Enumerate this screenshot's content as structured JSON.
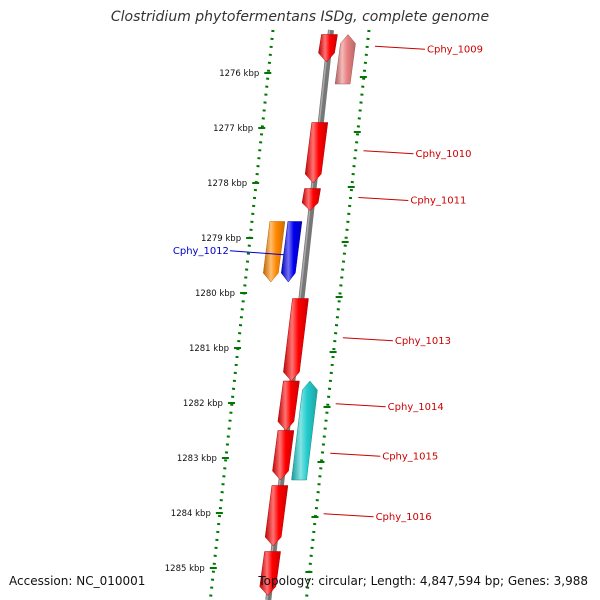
{
  "title": "Clostridium phytofermentans ISDg, complete genome",
  "footer": {
    "accession": "Accession: NC_010001",
    "topology": "Topology: circular; Length: 4,847,594 bp; Genes: 3,988"
  },
  "chart_data": {
    "type": "genome-map",
    "axis_unit": "kbp",
    "ticks": [
      "1276 kbp",
      "1277 kbp",
      "1278 kbp",
      "1279 kbp",
      "1280 kbp",
      "1281 kbp",
      "1282 kbp",
      "1283 kbp",
      "1284 kbp",
      "1285 kbp"
    ],
    "genes": [
      {
        "label": "Cphy_1009",
        "strand": "plus",
        "track": "inner",
        "start": 1275.3,
        "end": 1275.8,
        "color": "#ff0000",
        "label_color": "#cc0000"
      },
      {
        "label": "",
        "strand": "minus",
        "track": "outer",
        "start": 1275.3,
        "end": 1276.2,
        "color": "#e88080",
        "label_color": ""
      },
      {
        "label": "Cphy_1010",
        "strand": "plus",
        "track": "inner",
        "start": 1276.9,
        "end": 1278.0,
        "color": "#ff0000",
        "label_color": "#cc0000"
      },
      {
        "label": "Cphy_1011",
        "strand": "plus",
        "track": "inner",
        "start": 1278.1,
        "end": 1278.5,
        "color": "#ff0000",
        "label_color": "#cc0000"
      },
      {
        "label": "",
        "strand": "plus",
        "track": "outer-left",
        "start": 1278.7,
        "end": 1279.8,
        "color": "#ff8800",
        "label_color": ""
      },
      {
        "label": "Cphy_1012",
        "strand": "plus",
        "track": "inner-left",
        "start": 1278.7,
        "end": 1279.8,
        "color": "#0000ee",
        "label_color": "#0000cc"
      },
      {
        "label": "Cphy_1013",
        "strand": "plus",
        "track": "inner",
        "start": 1280.1,
        "end": 1281.6,
        "color": "#ff0000",
        "label_color": "#cc0000"
      },
      {
        "label": "Cphy_1014",
        "strand": "plus",
        "track": "inner",
        "start": 1281.6,
        "end": 1282.5,
        "color": "#ff0000",
        "label_color": "#cc0000"
      },
      {
        "label": "",
        "strand": "minus",
        "track": "outer",
        "start": 1281.6,
        "end": 1283.4,
        "color": "#22cccc",
        "label_color": ""
      },
      {
        "label": "Cphy_1015",
        "strand": "plus",
        "track": "inner",
        "start": 1282.5,
        "end": 1283.4,
        "color": "#ff0000",
        "label_color": "#cc0000"
      },
      {
        "label": "Cphy_1016",
        "strand": "plus",
        "track": "inner",
        "start": 1283.5,
        "end": 1284.6,
        "color": "#ff0000",
        "label_color": "#cc0000"
      },
      {
        "label": "",
        "strand": "plus",
        "track": "inner",
        "start": 1284.7,
        "end": 1285.5,
        "color": "#ff0000",
        "label_color": ""
      }
    ]
  }
}
